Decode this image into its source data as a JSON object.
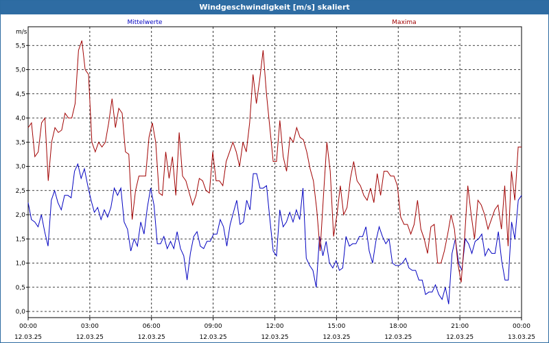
{
  "window": {
    "title": "Windgeschwindigkeit [m/s] skaliert"
  },
  "chart_data": {
    "type": "line",
    "title": "Windgeschwindigkeit [m/s] skaliert",
    "ylabel": "m/s",
    "ylim": [
      0,
      6
    ],
    "xlim_hours": [
      0,
      24
    ],
    "grid": true,
    "legend_placement": "top",
    "y_ticks": [
      "0,0",
      "0,5",
      "1,0",
      "1,5",
      "2,0",
      "2,5",
      "3,0",
      "3,5",
      "4,0",
      "4,5",
      "5,0",
      "5,5"
    ],
    "x_ticks": [
      {
        "time": "00:00",
        "date": "12.03.25"
      },
      {
        "time": "03:00",
        "date": "12.03.25"
      },
      {
        "time": "06:00",
        "date": "12.03.25"
      },
      {
        "time": "09:00",
        "date": "12.03.25"
      },
      {
        "time": "12:00",
        "date": "12.03.25"
      },
      {
        "time": "15:00",
        "date": "12.03.25"
      },
      {
        "time": "18:00",
        "date": "12.03.25"
      },
      {
        "time": "21:00",
        "date": "12.03.25"
      },
      {
        "time": "00:00",
        "date": "13.03.25"
      }
    ],
    "series": [
      {
        "name": "Mittelwerte",
        "color": "#0000c0",
        "values": [
          2.25,
          1.9,
          1.85,
          1.75,
          2.0,
          1.65,
          1.35,
          2.3,
          2.5,
          2.25,
          2.1,
          2.4,
          2.4,
          2.35,
          2.9,
          3.05,
          2.75,
          2.95,
          2.6,
          2.3,
          2.05,
          2.15,
          1.9,
          2.1,
          1.95,
          2.15,
          2.55,
          2.4,
          2.55,
          1.85,
          1.7,
          1.25,
          1.5,
          1.35,
          1.85,
          1.6,
          2.15,
          2.55,
          2.2,
          1.4,
          1.4,
          1.55,
          1.3,
          1.45,
          1.3,
          1.65,
          1.3,
          1.15,
          0.65,
          1.2,
          1.55,
          1.65,
          1.35,
          1.3,
          1.45,
          1.45,
          1.6,
          1.6,
          1.9,
          1.75,
          1.35,
          1.8,
          2.05,
          2.3,
          1.8,
          1.85,
          2.3,
          2.1,
          2.85,
          2.85,
          2.55,
          2.55,
          2.6,
          1.9,
          1.25,
          1.15,
          2.1,
          1.75,
          1.85,
          2.05,
          1.85,
          2.1,
          1.9,
          2.55,
          1.1,
          0.95,
          0.85,
          0.5,
          1.55,
          1.15,
          1.45,
          1.0,
          0.9,
          1.05,
          0.85,
          0.9,
          1.55,
          1.35,
          1.4,
          1.4,
          1.55,
          1.55,
          1.75,
          1.25,
          1.0,
          1.45,
          1.75,
          1.55,
          1.4,
          1.5,
          1.0,
          0.95,
          0.95,
          1.0,
          1.1,
          0.9,
          0.85,
          0.85,
          0.65,
          0.65,
          0.35,
          0.4,
          0.4,
          0.55,
          0.35,
          0.25,
          0.5,
          0.15,
          1.2,
          1.5,
          1.0,
          0.85,
          1.5,
          1.4,
          1.2,
          1.45,
          1.5,
          1.6,
          1.15,
          1.3,
          1.2,
          1.2,
          1.65,
          1.05,
          0.65,
          0.65,
          1.85,
          1.5,
          2.3,
          2.4
        ]
      },
      {
        "name": "Maxima",
        "color": "#a00000",
        "values": [
          3.8,
          3.9,
          3.2,
          3.3,
          3.9,
          4.0,
          2.7,
          3.5,
          3.8,
          3.7,
          3.75,
          4.1,
          4.0,
          4.0,
          4.3,
          5.4,
          5.6,
          5.0,
          4.9,
          3.5,
          3.3,
          3.5,
          3.4,
          3.5,
          3.9,
          4.4,
          3.8,
          4.2,
          4.1,
          3.3,
          3.25,
          1.9,
          2.5,
          2.8,
          2.8,
          2.8,
          3.6,
          3.9,
          3.5,
          2.45,
          2.4,
          3.3,
          2.75,
          3.2,
          2.4,
          3.7,
          2.8,
          2.7,
          2.45,
          2.2,
          2.4,
          2.75,
          2.7,
          2.5,
          2.45,
          3.3,
          2.7,
          2.7,
          2.6,
          3.1,
          3.3,
          3.5,
          3.3,
          3.0,
          3.5,
          3.3,
          3.9,
          4.9,
          4.3,
          4.8,
          5.4,
          4.5,
          3.8,
          3.1,
          3.1,
          3.95,
          3.2,
          2.9,
          3.6,
          3.5,
          3.8,
          3.6,
          3.55,
          3.3,
          2.95,
          2.7,
          2.1,
          1.25,
          2.4,
          3.5,
          2.9,
          1.55,
          2.0,
          2.6,
          2.0,
          2.15,
          2.75,
          3.1,
          2.7,
          2.6,
          2.4,
          2.3,
          2.55,
          2.25,
          2.85,
          2.4,
          2.9,
          2.9,
          2.8,
          2.8,
          2.6,
          1.95,
          1.8,
          1.8,
          1.6,
          1.8,
          2.3,
          1.7,
          1.5,
          1.2,
          1.75,
          1.8,
          1.0,
          1.0,
          1.25,
          1.6,
          2.0,
          1.7,
          1.0,
          0.6,
          1.5,
          2.6,
          2.0,
          1.5,
          2.3,
          2.2,
          2.0,
          1.7,
          1.9,
          2.1,
          2.2,
          1.7,
          2.6,
          1.35,
          2.9,
          2.3,
          3.4,
          3.4
        ]
      }
    ]
  }
}
